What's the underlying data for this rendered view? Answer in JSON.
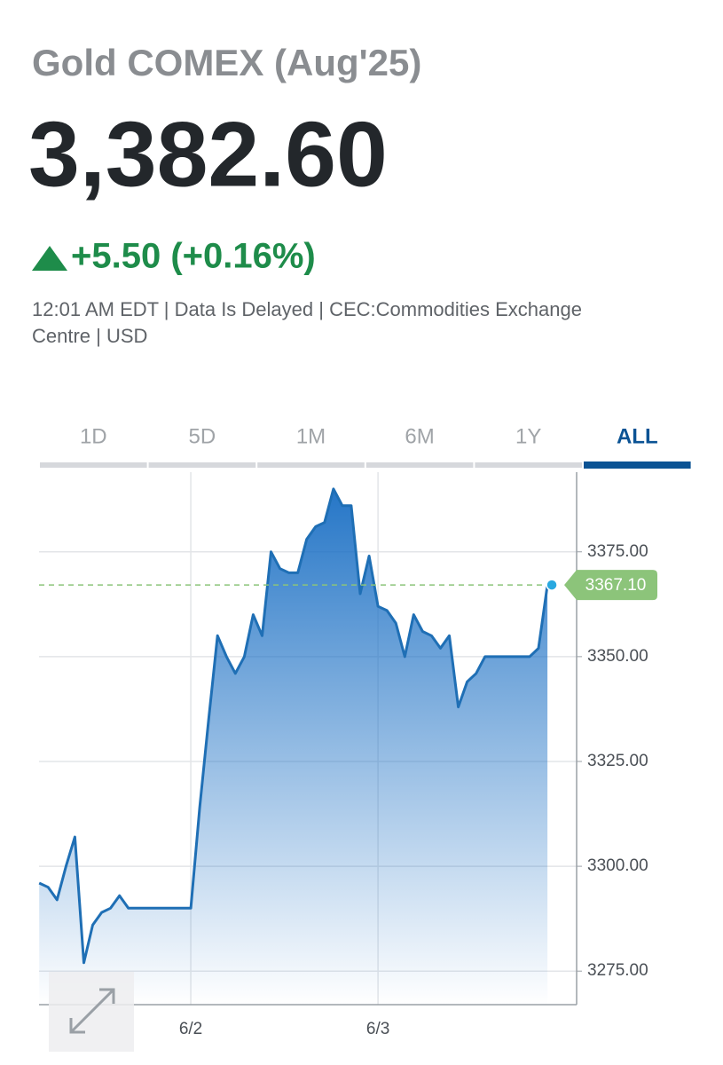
{
  "header": {
    "title": "Gold COMEX (Aug'25)",
    "price": "3,382.60",
    "change": "+5.50 (+0.16%)",
    "info_line_1": "12:01 AM EDT | Data Is Delayed | CEC:Commodities Exchange",
    "info_line_2": "Centre | USD"
  },
  "tabs": {
    "items": [
      "1D",
      "5D",
      "1M",
      "6M",
      "1Y",
      "ALL"
    ],
    "active": "ALL"
  },
  "chart_data": {
    "type": "line",
    "categories": [
      null,
      null,
      null,
      null,
      null,
      null,
      null,
      null,
      null,
      null,
      null,
      null,
      null,
      null,
      null,
      null,
      null,
      "6/2",
      null,
      null,
      null,
      null,
      null,
      null,
      null,
      null,
      null,
      null,
      null,
      null,
      null,
      null,
      null,
      null,
      null,
      null,
      null,
      null,
      "6/3",
      null,
      null,
      null,
      null,
      null,
      null,
      null,
      null,
      null,
      null,
      null,
      null,
      null,
      null,
      null,
      null,
      null,
      null,
      null
    ],
    "values": [
      3296,
      3295,
      3292,
      3300,
      3307,
      3277,
      3286,
      3289,
      3290,
      3293,
      3290,
      3290,
      3290,
      3290,
      3290,
      3290,
      3290,
      3290,
      3314,
      3335,
      3355,
      3350,
      3346,
      3350,
      3360,
      3355,
      3375,
      3371,
      3370,
      3370,
      3378,
      3381,
      3382,
      3390,
      3386,
      3386,
      3365,
      3374,
      3362,
      3361,
      3358,
      3350,
      3360,
      3356,
      3355,
      3352,
      3355,
      3338,
      3344,
      3346,
      3350,
      3350,
      3350,
      3350,
      3350,
      3350,
      3352,
      3367.1
    ],
    "color": "#1f6fb5",
    "ylim": [
      3267,
      3394
    ],
    "yticks": [
      {
        "value": 3275,
        "label": "3275.00"
      },
      {
        "value": 3300,
        "label": "3300.00"
      },
      {
        "value": 3325,
        "label": "3325.00"
      },
      {
        "value": 3350,
        "label": "3350.00"
      },
      {
        "value": 3375,
        "label": "3375.00"
      }
    ],
    "grid": true,
    "reference_line": {
      "value": 3367.1,
      "label": "3367.10",
      "color": "#8cc47a"
    }
  }
}
